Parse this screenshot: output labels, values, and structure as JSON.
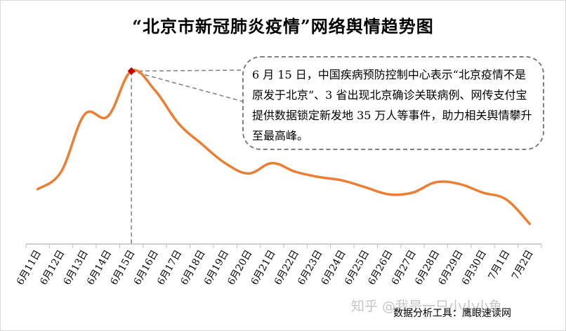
{
  "chart_data": {
    "type": "line",
    "title": "“北京市新冠肺炎疫情”网络舆情趋势图",
    "categories": [
      "6月11日",
      "6月12日",
      "6月13日",
      "6月14日",
      "6月15日",
      "6月16日",
      "6月17日",
      "6月18日",
      "6月19日",
      "6月20日",
      "6月21日",
      "6月22日",
      "6月23日",
      "6月24日",
      "6月25日",
      "6月26日",
      "6月27日",
      "6月28日",
      "6月29日",
      "6月30日",
      "7月1日",
      "7月2日"
    ],
    "values": [
      30,
      40,
      73,
      72,
      98,
      87,
      68,
      56,
      45,
      39,
      45,
      40,
      37,
      35,
      31,
      27,
      28,
      34,
      33,
      28,
      24,
      10
    ],
    "ylim": [
      0,
      105
    ],
    "grid": false,
    "peak_index": 4,
    "colors": {
      "line": "#ED7D31",
      "peak_marker": "#C00000",
      "guide": "#7F7F7F",
      "axis": "#BFBFBF"
    },
    "annotation": "6 月 15 日，中国疾病预防控制中心表示“北京疫情不是原发于北京”、3 省出现北京确诊关联病例、网传支付宝提供数据锁定新发地 35 万人等事件，助力相关舆情攀升至最高峰。"
  },
  "source_note": "数据分析工具：鹰眼速读网",
  "watermark": "知乎 @我是一只小小小鱼"
}
